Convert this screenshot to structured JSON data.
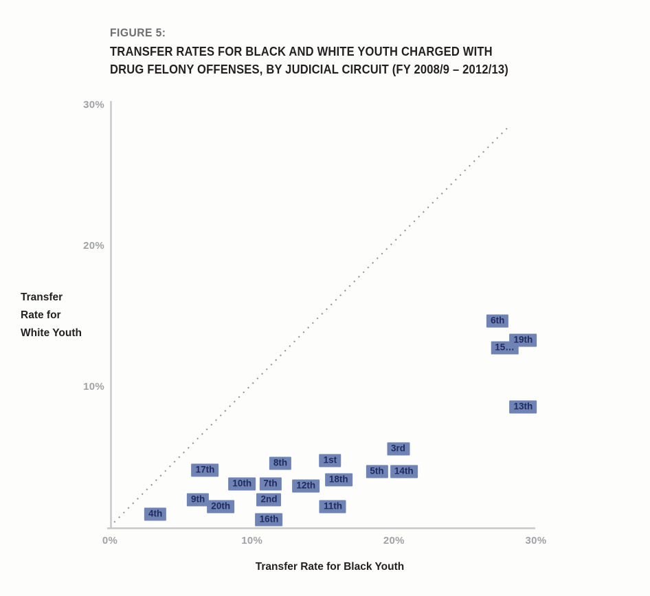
{
  "figure": {
    "label": "FIGURE 5:",
    "title_line1": "TRANSFER RATES FOR BLACK AND WHITE YOUTH CHARGED WITH",
    "title_line2": "DRUG FELONY OFFENSES, BY JUDICIAL CIRCUIT (FY 2008/9 – 2012/13)"
  },
  "chart_data": {
    "type": "scatter",
    "title": "Transfer Rates for Black and White Youth Charged with Drug Felony Offenses, by Judicial Circuit (FY 2008/9 – 2012/13)",
    "xlabel": "Transfer Rate for Black Youth",
    "ylabel": "Transfer Rate for White Youth",
    "ylabel_lines": [
      "Transfer",
      "Rate for",
      "White Youth"
    ],
    "xlim": [
      0,
      30
    ],
    "ylim": [
      0,
      30
    ],
    "x_ticks": [
      {
        "value": 0,
        "label": "0%"
      },
      {
        "value": 10,
        "label": "10%"
      },
      {
        "value": 20,
        "label": "20%"
      },
      {
        "value": 30,
        "label": "30%"
      }
    ],
    "y_ticks": [
      {
        "value": 10,
        "label": "10%"
      },
      {
        "value": 20,
        "label": "20%"
      },
      {
        "value": 30,
        "label": "30%"
      }
    ],
    "grid": false,
    "legend": "none",
    "marker_style": "labeled-box",
    "reference_line": {
      "kind": "identity-dotted",
      "from": [
        0.3,
        0.4
      ],
      "to": [
        28.1,
        28.5
      ]
    },
    "points": [
      {
        "label": "1st",
        "x": 15.5,
        "y": 4.8
      },
      {
        "label": "2nd",
        "x": 11.2,
        "y": 2.0
      },
      {
        "label": "3rd",
        "x": 20.3,
        "y": 5.6
      },
      {
        "label": "4th",
        "x": 3.2,
        "y": 1.0
      },
      {
        "label": "5th",
        "x": 18.8,
        "y": 4.0
      },
      {
        "label": "6th",
        "x": 27.3,
        "y": 14.7
      },
      {
        "label": "7th",
        "x": 11.3,
        "y": 3.1
      },
      {
        "label": "8th",
        "x": 12.0,
        "y": 4.6
      },
      {
        "label": "9th",
        "x": 6.2,
        "y": 2.0
      },
      {
        "label": "10th",
        "x": 9.3,
        "y": 3.1
      },
      {
        "label": "11th",
        "x": 15.7,
        "y": 1.5
      },
      {
        "label": "12th",
        "x": 13.8,
        "y": 3.0
      },
      {
        "label": "13th",
        "x": 29.1,
        "y": 8.6
      },
      {
        "label": "14th",
        "x": 20.7,
        "y": 4.0
      },
      {
        "label": "15…",
        "x": 27.8,
        "y": 12.8
      },
      {
        "label": "16th",
        "x": 11.2,
        "y": 0.6
      },
      {
        "label": "17th",
        "x": 6.7,
        "y": 4.1
      },
      {
        "label": "18th",
        "x": 16.1,
        "y": 3.4
      },
      {
        "label": "19th",
        "x": 29.1,
        "y": 13.3
      },
      {
        "label": "20th",
        "x": 7.8,
        "y": 1.5
      }
    ],
    "colors": {
      "marker_bg": "#7083b5",
      "marker_text": "#1f2a5e",
      "axis_line": "#c7c8ca",
      "tick_text": "#a0a2a5",
      "reference_line": "#8d8d8d",
      "figure_label": "#6d6e71",
      "title_text": "#231f20"
    }
  }
}
